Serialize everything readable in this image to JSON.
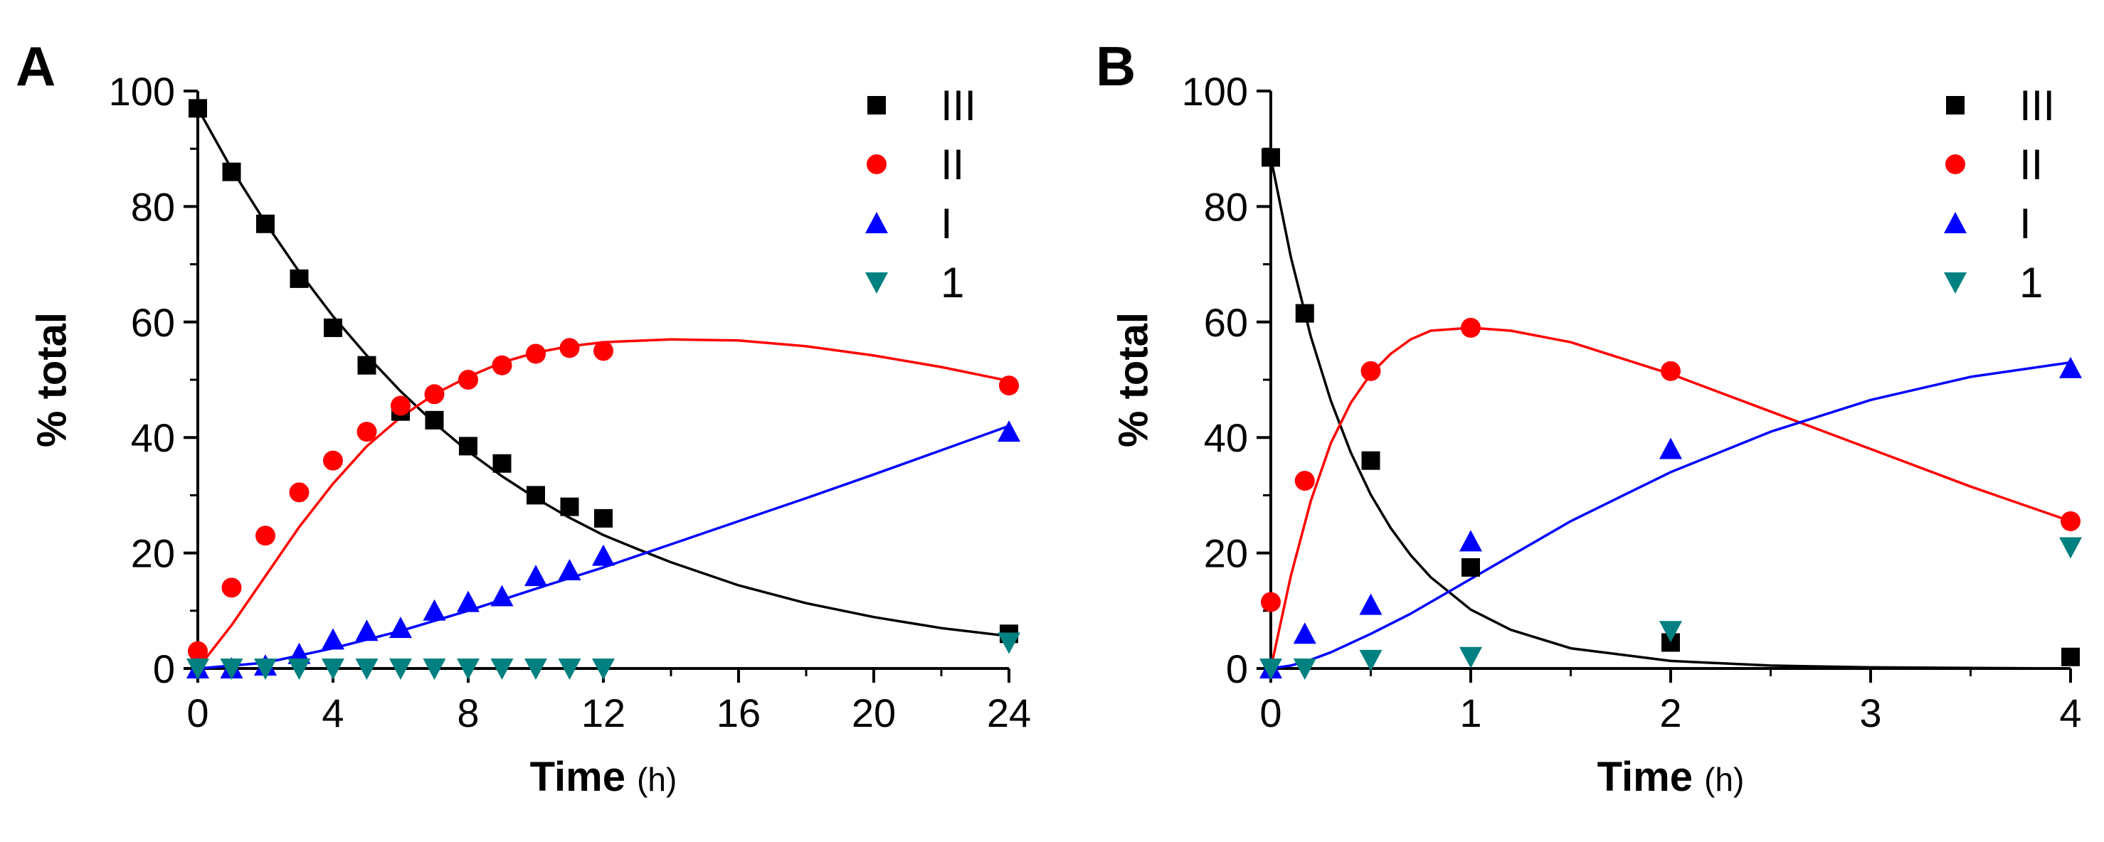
{
  "figure": {
    "panels": [
      "A",
      "B"
    ]
  },
  "chart_data": [
    {
      "panel": "A",
      "type": "scatter",
      "xlabel": "Time",
      "xunit": "(h)",
      "ylabel": "% total",
      "xlim": [
        0,
        24
      ],
      "ylim": [
        0,
        100
      ],
      "xticks": [
        0,
        4,
        8,
        12,
        16,
        20,
        24
      ],
      "yticks": [
        0,
        20,
        40,
        60,
        80,
        100
      ],
      "legend": "top-right",
      "series": [
        {
          "name": "III",
          "marker": "square",
          "color": "#000000",
          "x": [
            0,
            1,
            2,
            3,
            4,
            5,
            6,
            7,
            8,
            9,
            10,
            11,
            12,
            24
          ],
          "y": [
            97,
            86,
            77,
            67.5,
            59,
            52.5,
            44.5,
            43,
            38.5,
            35.5,
            30,
            28,
            26,
            6
          ],
          "fit_x": [
            0,
            1,
            2,
            3,
            4,
            5,
            6,
            7,
            8,
            9,
            10,
            11,
            12,
            13,
            14,
            16,
            18,
            20,
            22,
            24
          ],
          "fit_y": [
            97,
            86.5,
            77.2,
            68.7,
            61,
            54.2,
            48,
            42.5,
            37.6,
            33.3,
            29.5,
            26.1,
            23.1,
            20.7,
            18.4,
            14.4,
            11.3,
            8.9,
            7,
            5.6
          ]
        },
        {
          "name": "II",
          "marker": "circle",
          "color": "#ff0000",
          "x": [
            0,
            1,
            2,
            3,
            4,
            5,
            6,
            7,
            8,
            9,
            10,
            11,
            12,
            24
          ],
          "y": [
            3,
            14,
            23,
            30.5,
            36,
            41,
            45.5,
            47.5,
            50,
            52.5,
            54.5,
            55.5,
            55,
            49
          ],
          "fit_x": [
            0,
            1,
            2,
            3,
            4,
            5,
            6,
            7,
            8,
            9,
            10,
            11,
            12,
            14,
            16,
            18,
            20,
            22,
            24
          ],
          "fit_y": [
            0,
            7.5,
            16,
            24.5,
            32,
            38.5,
            43.5,
            47.5,
            50.5,
            53,
            54.7,
            55.8,
            56.5,
            57,
            56.8,
            55.8,
            54.2,
            52.2,
            49.8
          ]
        },
        {
          "name": "I",
          "marker": "triangle-up",
          "color": "#0000ff",
          "x": [
            0,
            1,
            2,
            3,
            4,
            5,
            6,
            7,
            8,
            9,
            10,
            11,
            12,
            24
          ],
          "y": [
            0,
            0,
            0.5,
            2.5,
            5,
            6.5,
            7,
            10,
            11.5,
            12.5,
            16,
            17,
            19.5,
            41
          ],
          "fit_x": [
            0,
            2,
            4,
            6,
            8,
            10,
            12,
            14,
            16,
            18,
            20,
            22,
            24
          ],
          "fit_y": [
            0,
            1,
            3.5,
            6.5,
            10,
            13.8,
            17.5,
            21.5,
            25.5,
            29.5,
            33.6,
            37.8,
            42
          ]
        },
        {
          "name": "1",
          "marker": "triangle-down",
          "color": "#008080",
          "x": [
            0,
            1,
            2,
            3,
            4,
            5,
            6,
            7,
            8,
            9,
            10,
            11,
            12,
            24
          ],
          "y": [
            0,
            0,
            0,
            0,
            0,
            0,
            0,
            0,
            0,
            0,
            0,
            0,
            0,
            4.5
          ],
          "fit_x": [],
          "fit_y": []
        }
      ]
    },
    {
      "panel": "B",
      "type": "scatter",
      "xlabel": "Time",
      "xunit": "(h)",
      "ylabel": "% total",
      "xlim": [
        0,
        4
      ],
      "ylim": [
        0,
        100
      ],
      "xticks": [
        0,
        1,
        2,
        3,
        4
      ],
      "yticks": [
        0,
        20,
        40,
        60,
        80,
        100
      ],
      "legend": "top-right",
      "series": [
        {
          "name": "III",
          "marker": "square",
          "color": "#000000",
          "x": [
            0,
            0.17,
            0.5,
            1,
            2,
            4
          ],
          "y": [
            88.5,
            61.5,
            36,
            17.5,
            4.5,
            2
          ],
          "fit_x": [
            0,
            0.1,
            0.2,
            0.3,
            0.4,
            0.5,
            0.6,
            0.7,
            0.8,
            1,
            1.2,
            1.5,
            2,
            2.5,
            3,
            3.5,
            4
          ],
          "fit_y": [
            88.5,
            71.3,
            57.5,
            46.4,
            37.4,
            30.1,
            24.3,
            19.6,
            15.8,
            10.2,
            6.7,
            3.5,
            1.3,
            0.5,
            0.2,
            0.1,
            0
          ]
        },
        {
          "name": "II",
          "marker": "circle",
          "color": "#ff0000",
          "x": [
            0,
            0.17,
            0.5,
            1,
            2,
            4
          ],
          "y": [
            11.5,
            32.5,
            51.5,
            59,
            51.5,
            25.5
          ],
          "fit_x": [
            0,
            0.1,
            0.2,
            0.3,
            0.4,
            0.5,
            0.6,
            0.7,
            0.8,
            1,
            1.2,
            1.5,
            2,
            2.5,
            3,
            3.5,
            4
          ],
          "fit_y": [
            0,
            16,
            29,
            39,
            46,
            51,
            54.5,
            57,
            58.5,
            59,
            58.5,
            56.5,
            51,
            44.5,
            38,
            31.5,
            25.5
          ]
        },
        {
          "name": "I",
          "marker": "triangle-up",
          "color": "#0000ff",
          "x": [
            0,
            0.17,
            0.5,
            1,
            2,
            4
          ],
          "y": [
            0,
            6,
            11,
            22,
            38,
            52
          ],
          "fit_x": [
            0,
            0.1,
            0.2,
            0.3,
            0.5,
            0.7,
            1,
            1.5,
            2,
            2.5,
            3,
            3.5,
            4
          ],
          "fit_y": [
            0,
            0.5,
            1.5,
            2.8,
            6,
            9.5,
            15.5,
            25.5,
            34,
            41,
            46.5,
            50.5,
            53
          ]
        },
        {
          "name": "1",
          "marker": "triangle-down",
          "color": "#008080",
          "x": [
            0,
            0.17,
            0.5,
            1,
            2,
            4
          ],
          "y": [
            0,
            0,
            1.5,
            2,
            6.5,
            21
          ],
          "fit_x": [],
          "fit_y": []
        }
      ]
    }
  ]
}
